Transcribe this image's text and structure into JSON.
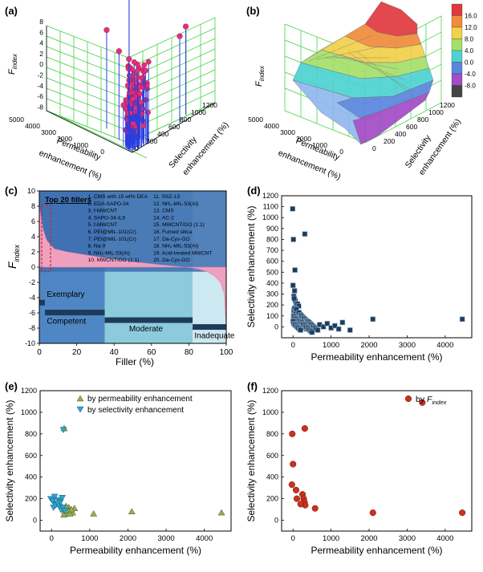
{
  "panels": {
    "a": {
      "label": "(a)",
      "zlabel": "F",
      "zlabel_sub": "index",
      "xlabel": [
        "Permeability",
        "enhancement (%)"
      ],
      "ylabel": [
        "Selectivity",
        "enhancement (%)"
      ],
      "z_ticks": [
        "8",
        "6",
        "4",
        "2",
        "0",
        "-2",
        "-4",
        "-6",
        "-8"
      ],
      "x_ticks": [
        "5000",
        "4000",
        "3000",
        "2000",
        "1000",
        "0"
      ],
      "y_ticks": [
        "1200",
        "1000",
        "800",
        "600",
        "400",
        "200",
        "0"
      ]
    },
    "b": {
      "label": "(b)",
      "zlabel": "F",
      "zlabel_sub": "index",
      "xlabel": [
        "Permeability",
        "enhancement (%)"
      ],
      "ylabel": [
        "Selectivity",
        "enhancement (%)"
      ],
      "x_ticks": [
        "5000",
        "4000",
        "3000",
        "2000",
        "1000",
        "0"
      ],
      "y_ticks": [
        "1200",
        "1000",
        "800",
        "600",
        "400",
        "200",
        "0"
      ],
      "colorbar_labels": [
        "16.0",
        "12.0",
        "8.0",
        "4.0",
        "0.0",
        "-4.0",
        "-8.0"
      ],
      "colorbar_colors": [
        "#e0393e",
        "#f08c3a",
        "#f2d14a",
        "#a6e06a",
        "#4fd2d2",
        "#5a86e0",
        "#a24cc6",
        "#444444"
      ]
    },
    "c": {
      "label": "(c)",
      "ylabel": "F",
      "ylabel_sub": "index",
      "xlabel": "Filler (%)",
      "top20_title": "Top 20 fillers",
      "fillers_left": [
        "1.  CMS with 15 wt% DEA",
        "2.  EDA-SAPO-34",
        "3.  f-MWCNT",
        "4.  SAPO-34-IL6",
        "5.  f-MWCNT",
        "6.  PEI@MIL-101(Cr)",
        "7.  PEI@MIL-101(Cr)",
        "8.  Na-X",
        "9.  NH₂-MIL-53(Al)",
        "10. MWCNT/GO (1:1)"
      ],
      "fillers_right": [
        "11. SSZ-13",
        "12. NH₂-MIL-53(Al)",
        "13. CMS",
        "14. AC-2",
        "15. MWCNT/GO (1:1)",
        "16. Fumed silica",
        "17. Da-Cys-GO",
        "18. NH₂-MIL-53(Al)",
        "19. Acid-treated MWCNT",
        "20. Da-Cys-GO"
      ],
      "categories": [
        "Exemplary",
        "Competent",
        "Moderate",
        "Inadequate"
      ]
    },
    "d": {
      "label": "(d)",
      "xlabel": "Permeability enhancement (%)",
      "ylabel": "Selectivity enhancement (%)"
    },
    "e": {
      "label": "(e)",
      "xlabel": "Permeability enhancement (%)",
      "ylabel": "Selectivity enhancement (%)",
      "legend": [
        "by permeability enhancement",
        "by selectivity enhancement"
      ]
    },
    "f": {
      "label": "(f)",
      "xlabel": "Permeability enhancement (%)",
      "ylabel": "Selectivity enhancement (%)",
      "legend_prefix": "by ",
      "legend_f": "F",
      "legend_sub": "index"
    }
  },
  "chart_data": [
    {
      "panel": "a",
      "type": "scatter",
      "title": "",
      "x": [
        4400,
        3400,
        2100,
        1100,
        50,
        300,
        600
      ],
      "y": [
        1050,
        800,
        150,
        80,
        700,
        850,
        100
      ],
      "z": [
        8,
        7.2,
        7,
        5.5,
        5.2,
        5.4,
        4.8
      ],
      "zlim": [
        -8,
        9
      ]
    },
    {
      "panel": "b",
      "type": "heatmap",
      "title": "",
      "colorbar_range": [
        -8,
        16
      ],
      "xlim": [
        0,
        5000
      ],
      "ylim": [
        0,
        1200
      ]
    },
    {
      "panel": "c",
      "type": "area",
      "xlabel": "Filler (%)",
      "ylim": [
        -10,
        10
      ],
      "xlim": [
        0,
        100
      ],
      "x": [
        0,
        2,
        4,
        8,
        15,
        25,
        35,
        50,
        65,
        78,
        82,
        86,
        90,
        94,
        97,
        99,
        100
      ],
      "y": [
        8,
        5,
        3.5,
        2.4,
        2.0,
        1.6,
        1.2,
        0.7,
        0.3,
        0.0,
        -0.1,
        -0.3,
        -0.6,
        -1.2,
        -2.0,
        -3.5,
        -8
      ],
      "band_ranges": [
        [
          0,
          35
        ],
        [
          35,
          82
        ],
        [
          82,
          100
        ]
      ],
      "band_colors": [
        "#4f87c4",
        "#8ccbdc",
        "#cce8f1"
      ],
      "ribbons": [
        {
          "name": "Exemplary",
          "x": [
            0,
            3
          ],
          "y": -4.6
        },
        {
          "name": "Competent",
          "x": [
            3,
            35
          ],
          "y": -5.9
        },
        {
          "name": "Moderate",
          "x": [
            35,
            82
          ],
          "y": -6.9
        },
        {
          "name": "Inadequate",
          "x": [
            82,
            100
          ],
          "y": -7.8
        }
      ]
    },
    {
      "panel": "d",
      "type": "scatter",
      "xlim": [
        -300,
        4700
      ],
      "ylim": [
        -100,
        1200
      ],
      "xticks": [
        0,
        1000,
        2000,
        3000,
        4000
      ],
      "yticks": [
        0,
        100,
        200,
        300,
        400,
        500,
        600,
        700,
        800,
        900,
        1000,
        1100,
        1200
      ],
      "x": [
        -10,
        10,
        50,
        310,
        40,
        0,
        20,
        60,
        30,
        80,
        100,
        120,
        150,
        20,
        40,
        70,
        90,
        130,
        160,
        200,
        220,
        250,
        280,
        310,
        340,
        370,
        400,
        430,
        460,
        500,
        550,
        600,
        700,
        800,
        900,
        1000,
        1100,
        1200,
        1300,
        1500,
        2100,
        4450,
        10,
        30,
        60,
        90,
        120,
        150,
        180,
        210,
        240,
        270,
        300,
        330,
        360,
        390,
        420,
        450,
        480,
        510,
        540,
        570,
        600,
        650,
        0,
        20,
        50,
        80,
        110,
        140,
        170,
        200,
        230,
        260,
        290,
        320,
        350,
        380,
        410,
        440,
        470,
        500
      ],
      "y": [
        1080,
        800,
        520,
        850,
        330,
        380,
        280,
        240,
        260,
        200,
        180,
        210,
        190,
        150,
        170,
        140,
        160,
        120,
        130,
        110,
        100,
        90,
        80,
        70,
        60,
        50,
        40,
        30,
        20,
        10,
        0,
        -10,
        20,
        0,
        30,
        -10,
        10,
        -20,
        40,
        -30,
        70,
        70,
        100,
        90,
        80,
        70,
        60,
        50,
        40,
        30,
        20,
        10,
        0,
        -10,
        -20,
        50,
        40,
        30,
        20,
        10,
        0,
        -10,
        -20,
        -30,
        50,
        30,
        20,
        10,
        0,
        -10,
        -20,
        -30,
        40,
        30,
        20,
        10,
        0,
        -10,
        -20,
        -30,
        -40,
        -50
      ]
    },
    {
      "panel": "e",
      "type": "scatter",
      "xlim": [
        -300,
        4700
      ],
      "ylim": [
        -100,
        1200
      ],
      "xticks": [
        0,
        1000,
        2000,
        3000,
        4000
      ],
      "yticks": [
        0,
        200,
        400,
        600,
        800,
        1000,
        1200
      ],
      "series": [
        {
          "name": "by permeability enhancement",
          "x": [
            300,
            350,
            400,
            450,
            500,
            550,
            600,
            320,
            380,
            420,
            480,
            520,
            1100,
            2100,
            4450,
            330
          ],
          "y": [
            100,
            80,
            60,
            120,
            90,
            70,
            110,
            50,
            130,
            90,
            60,
            100,
            60,
            80,
            70,
            850
          ]
        },
        {
          "name": "by selectivity enhancement",
          "x": [
            -20,
            30,
            80,
            130,
            180,
            230,
            280,
            50,
            100,
            150,
            200,
            250,
            300,
            350,
            310
          ],
          "y": [
            200,
            180,
            220,
            150,
            190,
            170,
            210,
            120,
            140,
            160,
            130,
            100,
            120,
            90,
            840
          ]
        }
      ]
    },
    {
      "panel": "f",
      "type": "scatter",
      "xlim": [
        -300,
        4700
      ],
      "ylim": [
        -100,
        1200
      ],
      "xticks": [
        0,
        1000,
        2000,
        3000,
        4000
      ],
      "yticks": [
        0,
        200,
        400,
        600,
        800,
        1000,
        1200
      ],
      "series": [
        {
          "name": "by F_index",
          "x": [
            3400,
            310,
            -20,
            0,
            -30,
            80,
            100,
            250,
            280,
            300,
            320,
            200,
            580,
            2100,
            4450
          ],
          "y": [
            1090,
            850,
            800,
            520,
            330,
            280,
            200,
            240,
            200,
            170,
            140,
            150,
            110,
            70,
            70
          ]
        }
      ]
    }
  ]
}
